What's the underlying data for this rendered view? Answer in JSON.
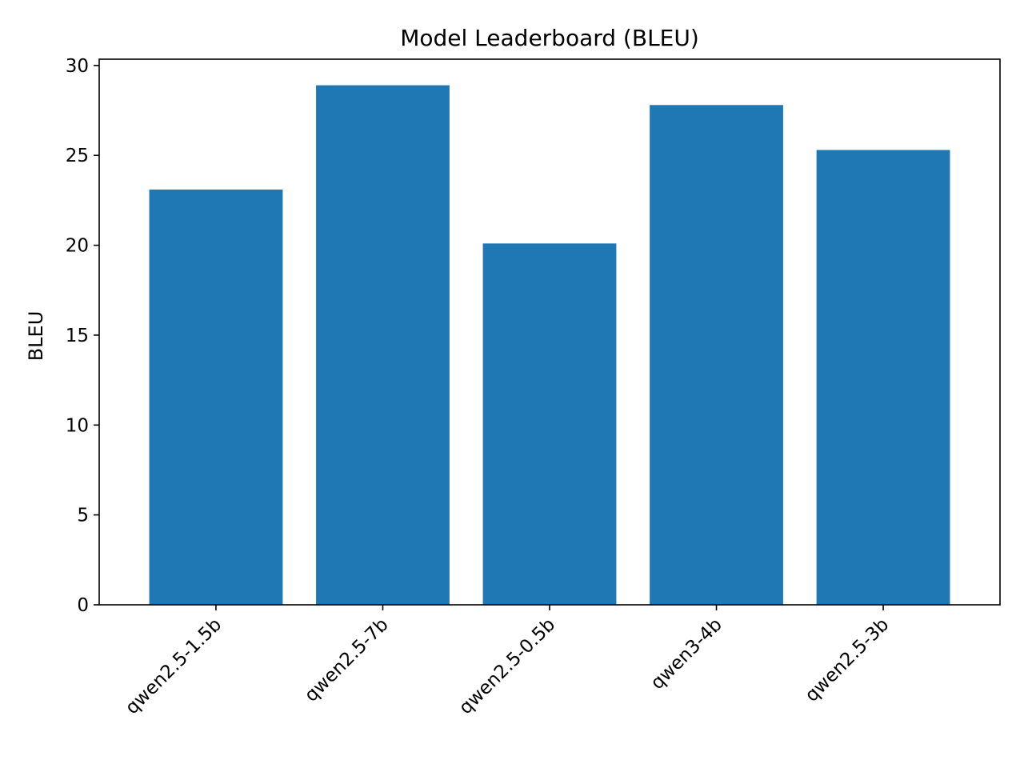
{
  "chart_data": {
    "type": "bar",
    "title": "Model Leaderboard (BLEU)",
    "xlabel": "",
    "ylabel": "BLEU",
    "categories": [
      "qwen2.5-1.5b",
      "qwen2.5-7b",
      "qwen2.5-0.5b",
      "qwen3-4b",
      "qwen2.5-3b"
    ],
    "values": [
      23.1,
      28.9,
      20.1,
      27.8,
      25.3
    ],
    "ylim": [
      0,
      30.35
    ],
    "yticks": [
      "0",
      "5",
      "10",
      "15",
      "20",
      "25",
      "30"
    ],
    "grid": false,
    "legend": "none",
    "bar_color": "#1f77b4"
  }
}
